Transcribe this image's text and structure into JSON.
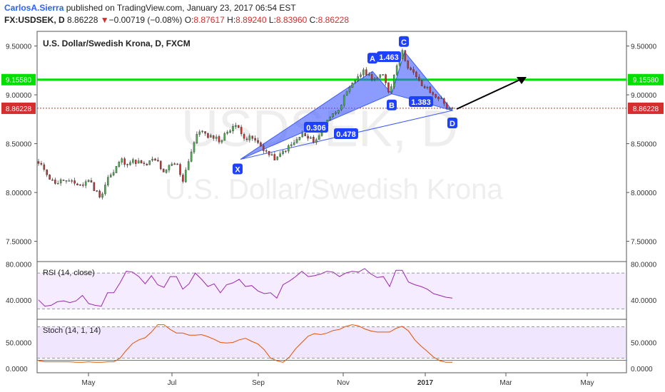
{
  "header": {
    "author": "CarlosA.Sierra",
    "published_text": "published on TradingView.com, January 23, 2017 06:54 EST",
    "symbol": "FX:USDSEK, D",
    "last": "8.86228",
    "change_arrow": "▼",
    "change": "−0.00719 (−0.08%)",
    "o_label": "O:",
    "o": "8.87617",
    "h_label": "H:",
    "h": "8.89240",
    "l_label": "L:",
    "l": "8.83960",
    "c_label": "C:",
    "c": "8.86228"
  },
  "watermark": {
    "ticker": "USDSEK, D",
    "name": "U.S. Dollar/Swedish Krona"
  },
  "colors": {
    "up": "#4caf50",
    "down": "#d32f2f",
    "pattern": "#3d5afe",
    "level": "#00e000",
    "rsi": "#9c27b0",
    "stoch": "#e65100"
  },
  "chart_data": [
    {
      "type": "candlestick",
      "title": "U.S. Dollar/Swedish Krona, D, FXCM",
      "yticks": [
        "9.50000",
        "9.00000",
        "8.50000",
        "8.00000",
        "7.50000"
      ],
      "ylim": [
        7.3,
        9.65
      ],
      "xticks": [
        "May",
        "Jul",
        "Sep",
        "Nov",
        "2017",
        "Mar",
        "May"
      ],
      "price_path": [
        8.29,
        8.24,
        8.12,
        8.1,
        8.13,
        8.1,
        8.09,
        8.07,
        8.14,
        8.02,
        7.96,
        8.15,
        8.2,
        8.34,
        8.3,
        8.32,
        8.31,
        8.27,
        8.33,
        8.32,
        8.18,
        8.28,
        8.3,
        8.12,
        8.35,
        8.55,
        8.66,
        8.55,
        8.58,
        8.52,
        8.62,
        8.68,
        8.66,
        8.55,
        8.56,
        8.5,
        8.44,
        8.37,
        8.34,
        8.42,
        8.47,
        8.52,
        8.6,
        8.55,
        8.53,
        8.59,
        8.75,
        8.8,
        8.88,
        9.0,
        9.1,
        9.2,
        9.24,
        9.18,
        9.17,
        9.2,
        9.01,
        9.3,
        9.44,
        9.28,
        9.2,
        9.1,
        9.06,
        8.99,
        8.97,
        8.88,
        8.86228
      ],
      "levels": [
        {
          "label": "9.15580",
          "value": 9.1558
        },
        {
          "label": "8.86228",
          "value": 8.86228
        }
      ],
      "pattern_points": [
        {
          "label": "X",
          "value": 8.34
        },
        {
          "label": "A",
          "value": 9.24
        },
        {
          "label": "B",
          "value": 9.01
        },
        {
          "label": "C",
          "value": 9.44
        },
        {
          "label": "D",
          "value": 8.84
        }
      ],
      "ratios": [
        "1.463",
        "0.306",
        "0.478",
        "1.383"
      ]
    },
    {
      "type": "line",
      "title": "RSI (14, close)",
      "yticks": [
        "80.0000",
        "40.0000"
      ],
      "ylim": [
        20,
        82
      ],
      "bands": [
        30,
        70
      ],
      "values": [
        40,
        33,
        34,
        38,
        39,
        37,
        39,
        45,
        36,
        34,
        33,
        48,
        48,
        59,
        72,
        71,
        66,
        58,
        67,
        57,
        54,
        66,
        66,
        52,
        58,
        70,
        63,
        55,
        58,
        48,
        57,
        59,
        63,
        55,
        56,
        50,
        47,
        48,
        42,
        57,
        61,
        66,
        72,
        66,
        67,
        69,
        72,
        71,
        66,
        70,
        72,
        71,
        75,
        69,
        65,
        66,
        55,
        73,
        73,
        60,
        57,
        55,
        52,
        47,
        45,
        43,
        42
      ]
    },
    {
      "type": "line",
      "title": "Stoch (14, 1, 14)",
      "yticks": [
        "50.0000",
        "0.0000"
      ],
      "ylim": [
        -8,
        93
      ],
      "bands": [
        20,
        80
      ],
      "values": [
        15,
        13,
        13,
        13,
        13,
        13,
        12,
        12,
        13,
        12,
        12,
        13,
        13,
        20,
        35,
        48,
        55,
        59,
        70,
        84,
        84,
        75,
        68,
        68,
        64,
        64,
        65,
        61,
        56,
        50,
        49,
        50,
        55,
        58,
        52,
        47,
        36,
        20,
        15,
        12,
        22,
        38,
        50,
        62,
        67,
        65,
        68,
        73,
        75,
        81,
        84,
        82,
        76,
        72,
        70,
        70,
        70,
        77,
        81,
        72,
        55,
        43,
        33,
        22,
        15,
        12,
        12
      ]
    }
  ]
}
